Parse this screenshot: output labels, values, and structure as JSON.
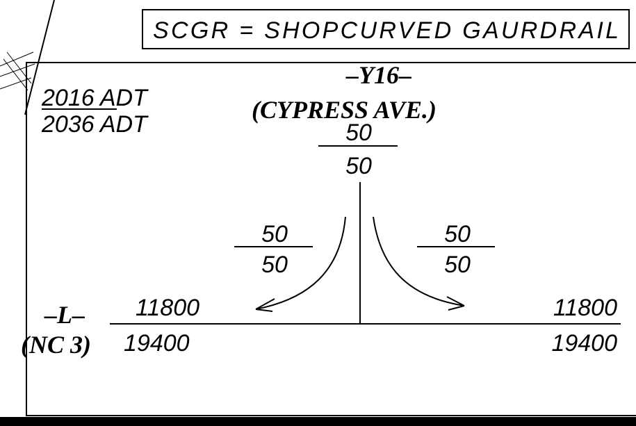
{
  "note": "SCGR = SHOPCURVED GAURDRAIL",
  "legend": {
    "top": "2016 ADT",
    "bottom": "2036 ADT"
  },
  "side_road": {
    "label": "–Y16–",
    "name": "(CYPRESS AVE.)",
    "volume_top": "50",
    "volume_bottom": "50"
  },
  "left_turn": {
    "top": "50",
    "bottom": "50"
  },
  "right_turn": {
    "top": "50",
    "bottom": "50"
  },
  "main_road": {
    "label": "–L–",
    "name": "(NC 3)",
    "left": {
      "top": "11800",
      "bottom": "19400"
    },
    "right": {
      "top": "11800",
      "bottom": "19400"
    }
  }
}
